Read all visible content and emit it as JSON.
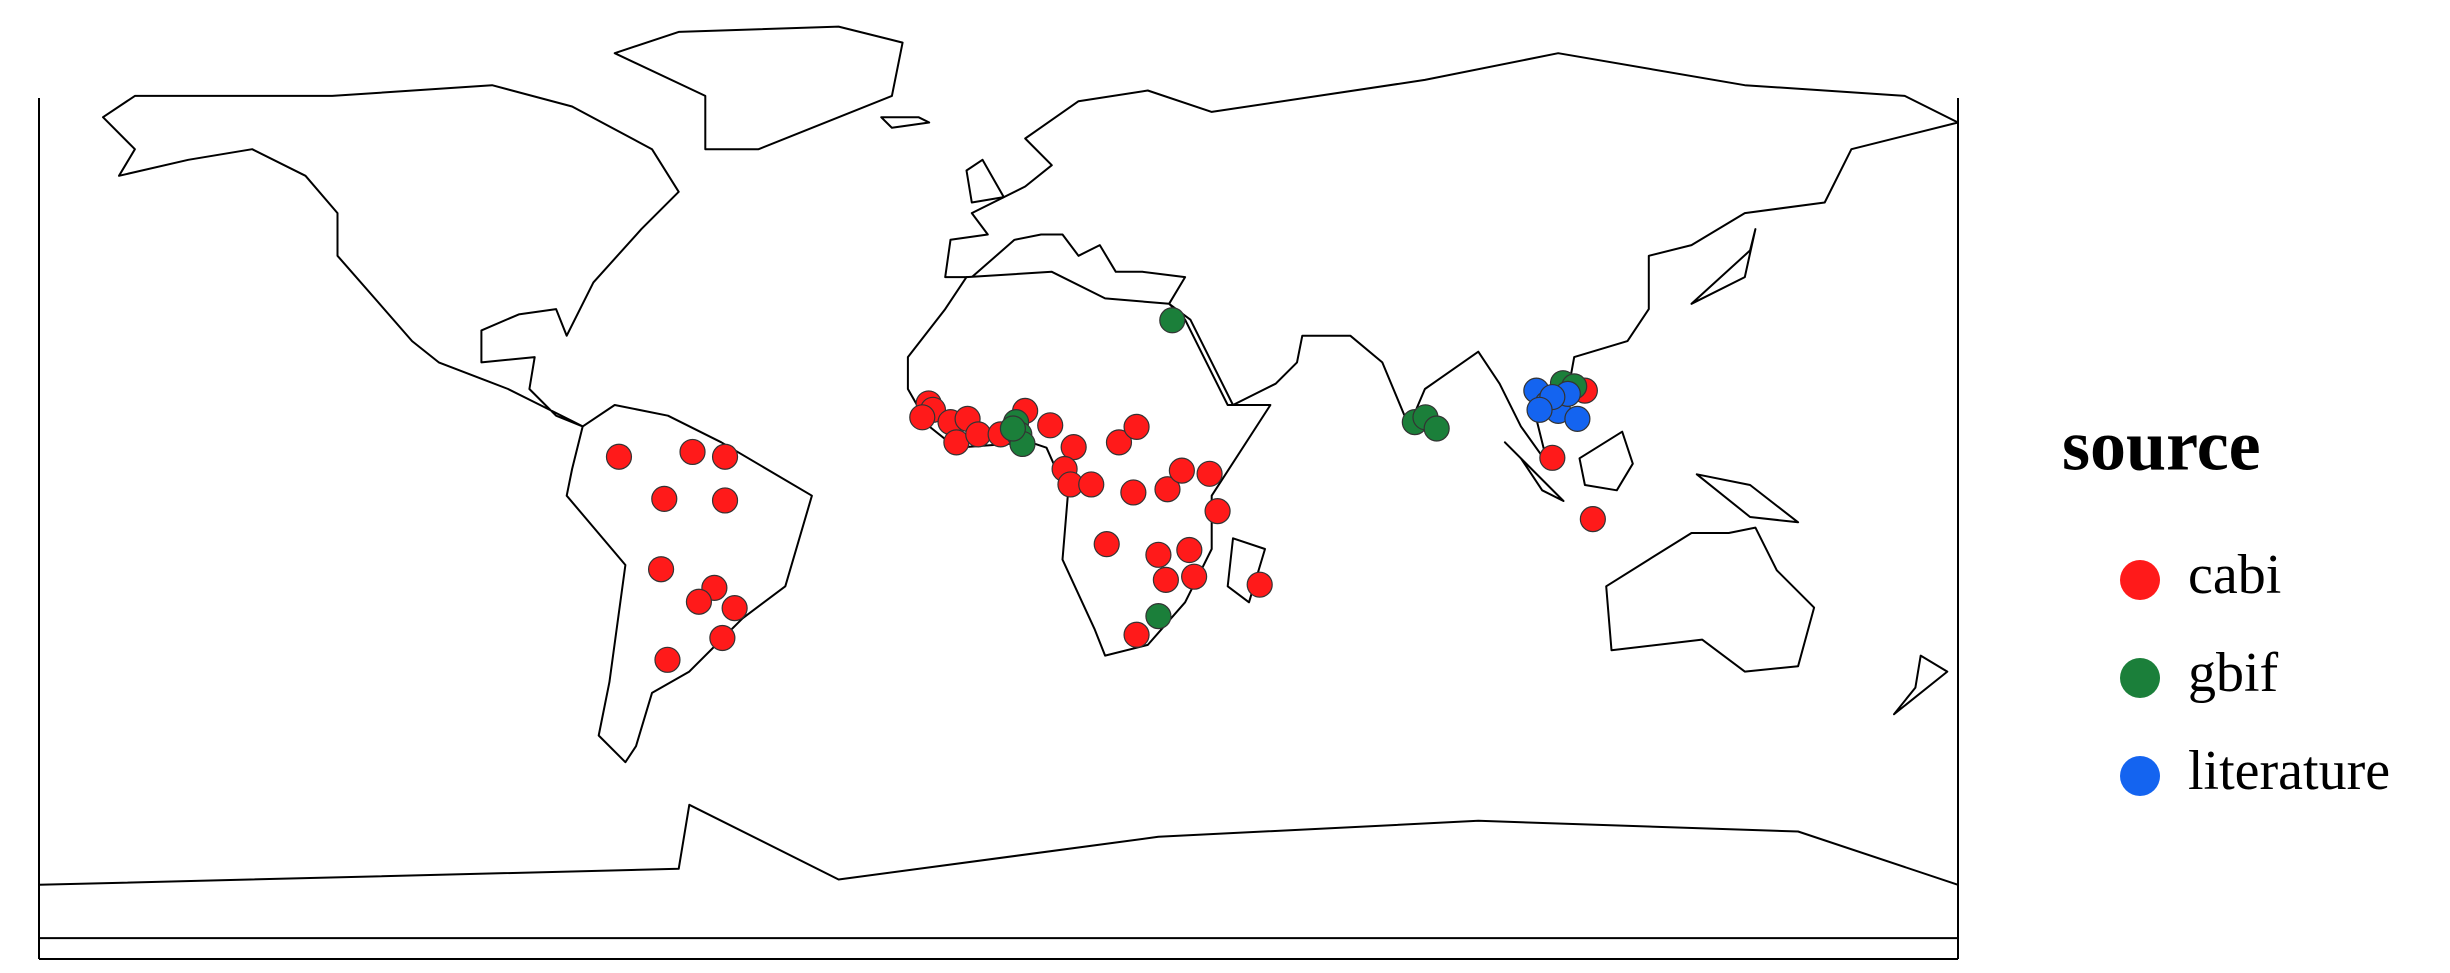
{
  "chart_data": {
    "type": "map",
    "legend_title": "source",
    "series": [
      {
        "name": "cabi",
        "color": "#ff1a1a",
        "x": [
          -71.2,
          -57.4,
          -51.3,
          -62.7,
          -51.3,
          -63.3,
          -53.3,
          -56.2,
          -49.5,
          -51.8,
          -62.1,
          -13.1,
          -12.3,
          -14.3,
          -9.0,
          -5.8,
          -7.9,
          -3.8,
          0.4,
          5.0,
          9.7,
          14.1,
          22.6,
          25.9,
          12.4,
          13.5,
          17.4,
          25.3,
          31.7,
          34.4,
          39.6,
          41.1,
          20.3,
          30.0,
          35.8,
          31.4,
          36.7,
          49.0,
          25.9,
          110.0,
          103.9,
          111.5
        ],
        "values": [
          2.3,
          3.2,
          2.3,
          -5.6,
          -5.9,
          -18.8,
          -22.3,
          -24.9,
          -26.1,
          -31.7,
          -35.8,
          12.3,
          11.1,
          9.7,
          8.8,
          9.4,
          5.0,
          6.5,
          6.5,
          10.9,
          8.2,
          4.1,
          5.0,
          7.9,
          0.0,
          -2.9,
          -2.9,
          -4.4,
          -3.8,
          -0.3,
          -0.9,
          -7.9,
          -14.1,
          -16.1,
          -15.2,
          -20.8,
          -20.2,
          -21.7,
          -31.1,
          14.7,
          2.1,
          -9.4
        ]
      },
      {
        "name": "gbif",
        "color": "#1b7f3a",
        "x": [
          32.6,
          3.3,
          3.9,
          4.5,
          2.7,
          78.1,
          80.1,
          82.2,
          105.9,
          108.0,
          30.0
        ],
        "values": [
          27.9,
          8.8,
          6.5,
          4.7,
          7.6,
          8.8,
          9.7,
          7.6,
          16.1,
          15.5,
          -27.6
        ]
      },
      {
        "name": "literature",
        "color": "#1464f0",
        "x": [
          100.9,
          103.0,
          105.0,
          106.8,
          108.6,
          103.9,
          101.5
        ],
        "values": [
          14.7,
          12.3,
          10.9,
          14.1,
          9.4,
          13.5,
          11.1
        ]
      }
    ]
  }
}
